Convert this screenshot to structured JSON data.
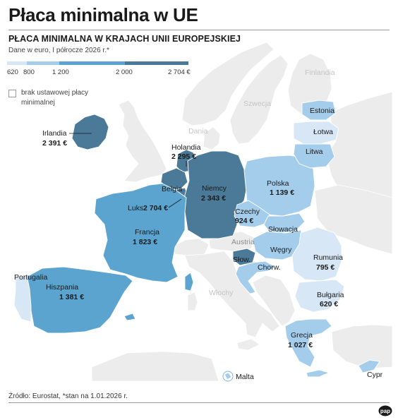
{
  "title": "Płaca minimalna w UE",
  "subtitle": "PŁACA MINIMALNA W KRAJACH UNII EUROPEJSKIEJ",
  "note": "Dane w euro, I półrocze 2026 r.*",
  "legend": {
    "ticks": [
      "620",
      "800",
      "1 200",
      "2 000",
      "2 704 €"
    ],
    "colors": [
      "#d7e7f5",
      "#a4cdeb",
      "#5aa4cf",
      "#4a7a97"
    ],
    "no_data_label": "brak ustawowej płacy minimalnej"
  },
  "countries": {
    "irlandia": {
      "name": "Irlandia",
      "value": "2 391 €"
    },
    "holandia": {
      "name": "Holandia",
      "value": "2 295 €"
    },
    "belgia": {
      "name": "Belgia"
    },
    "luksemburg": {
      "name": "Luks.",
      "value": "2 704 €"
    },
    "niemcy": {
      "name": "Niemcy",
      "value": "2 343 €"
    },
    "francja": {
      "name": "Francja",
      "value": "1 823 €"
    },
    "hiszpania": {
      "name": "Hiszpania",
      "value": "1 381 €"
    },
    "portugalia": {
      "name": "Portugalia"
    },
    "polska": {
      "name": "Polska",
      "value": "1 139 €"
    },
    "czechy": {
      "name": "Czechy",
      "value": "924 €"
    },
    "slowacja": {
      "name": "Słowacja"
    },
    "wegry": {
      "name": "Węgry"
    },
    "slowenia": {
      "name": "Słow."
    },
    "chorwacja": {
      "name": "Chorw."
    },
    "rumunia": {
      "name": "Rumunia",
      "value": "795 €"
    },
    "bulgaria": {
      "name": "Bułgaria",
      "value": "620 €"
    },
    "grecja": {
      "name": "Grecja",
      "value": "1 027 €"
    },
    "estonia": {
      "name": "Estonia"
    },
    "lotwa": {
      "name": "Łotwa"
    },
    "litwa": {
      "name": "Litwa"
    },
    "malta": {
      "name": "Malta"
    },
    "cypr": {
      "name": "Cypr"
    },
    "austria": {
      "name": "Austria"
    },
    "wlochy": {
      "name": "Włochy"
    },
    "dania": {
      "name": "Dania"
    },
    "szwecja": {
      "name": "Szwecja"
    },
    "finlandia": {
      "name": "Finlandia"
    }
  },
  "source": "Źródło: Eurostat, *stan na 1.01.2026 r.",
  "logo": "pap"
}
